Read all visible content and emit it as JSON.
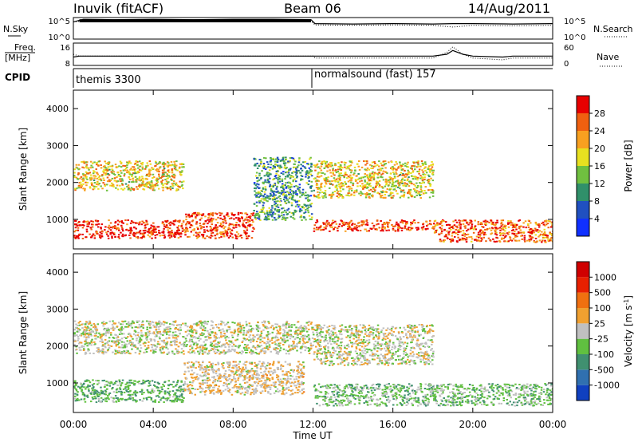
{
  "header": {
    "station": "Inuvik (fitACF)",
    "beam": "Beam 06",
    "date": "14/Aug/2011"
  },
  "noise_panel": {
    "left_label": "N.Sky",
    "left_ticks": [
      "10^5",
      "10^0"
    ],
    "right_ticks": [
      "10^5",
      "10^0"
    ],
    "right_label": "N.Search"
  },
  "freq_panel": {
    "left_label_1": "Freq.",
    "left_label_2": "[MHz]",
    "left_ticks": [
      "16",
      "8"
    ],
    "right_ticks": [
      "60",
      "0"
    ],
    "right_label": "Nave",
    "cpid_label": "CPID"
  },
  "modes": [
    {
      "name": "themis 3300",
      "start_hour": 0,
      "end_hour": 12
    },
    {
      "name": "normalsound (fast) 157",
      "start_hour": 12,
      "end_hour": 24
    }
  ],
  "time_axis": {
    "xlabel": "Time UT",
    "ticks": [
      "00:00",
      "04:00",
      "08:00",
      "12:00",
      "16:00",
      "20:00",
      "00:00"
    ]
  },
  "range_axis": {
    "ylabel": "Slant Range [km]",
    "ticks": [
      "1000",
      "2000",
      "3000",
      "4000"
    ]
  },
  "power_colorbar": {
    "label": "Power [dB]",
    "ticks": [
      "4",
      "8",
      "12",
      "16",
      "20",
      "24",
      "28"
    ],
    "colors": [
      "#1030ff",
      "#2050c0",
      "#30906a",
      "#70c040",
      "#e8e020",
      "#f8a020",
      "#f06010",
      "#e80000"
    ]
  },
  "velocity_colorbar": {
    "label_prefix": "Velocity [m s",
    "label_exp": "-1",
    "label_suffix": "]",
    "ticks": [
      "1000",
      "500",
      "100",
      "25",
      "-25",
      "-100",
      "-500",
      "-1000"
    ],
    "colors": [
      "#1040c0",
      "#3070b0",
      "#409070",
      "#60c040",
      "#c0c0c0",
      "#f0a030",
      "#f07010",
      "#e82000",
      "#d00000"
    ]
  },
  "chart_data": [
    {
      "type": "line",
      "panel": "noise",
      "x": [
        0,
        0.5,
        2,
        4,
        6,
        8,
        10,
        11.9,
        12.1,
        14,
        16,
        18,
        19,
        20,
        22,
        24
      ],
      "series": [
        {
          "name": "N.Sky",
          "values": [
            4,
            4.6,
            4.5,
            4.6,
            4.5,
            4.6,
            4.6,
            4.5,
            3.6,
            3.5,
            3.6,
            3.5,
            3.6,
            3.6,
            3.5,
            3.6
          ]
        },
        {
          "name": "N.Search",
          "values": [
            4,
            4.2,
            4.1,
            4.2,
            4.1,
            4.2,
            4.1,
            4.2,
            3.3,
            3.2,
            3.3,
            3.2,
            2.8,
            3.2,
            3.1,
            3.2
          ]
        }
      ],
      "ylim": [
        0,
        5
      ]
    },
    {
      "type": "line",
      "panel": "frequency",
      "x": [
        0,
        0.3,
        12,
        12.1,
        18,
        18.7,
        19,
        19.5,
        20,
        21.5,
        22,
        24
      ],
      "series": [
        {
          "name": "Freq.",
          "values": [
            10.5,
            11,
            11,
            11,
            11,
            12,
            14,
            12,
            11,
            10.5,
            11,
            11
          ]
        },
        {
          "name": "Nave",
          "values": [
            30,
            25,
            25,
            20,
            20,
            35,
            50,
            30,
            20,
            15,
            20,
            20
          ]
        }
      ]
    },
    {
      "type": "heatmap",
      "panel": "power",
      "xlim": [
        0,
        24
      ],
      "ylim": [
        200,
        4500
      ],
      "zlim": [
        0,
        30
      ],
      "layers": [
        {
          "hours": [
            0,
            5.5
          ],
          "range_km": [
            500,
            1000
          ],
          "value": 28
        },
        {
          "hours": [
            0,
            5.5
          ],
          "range_km": [
            1800,
            2600
          ],
          "value": 18
        },
        {
          "hours": [
            5.5,
            9
          ],
          "range_km": [
            500,
            1200
          ],
          "value": 26
        },
        {
          "hours": [
            9,
            11.9
          ],
          "range_km": [
            1000,
            2700
          ],
          "value": 10
        },
        {
          "hours": [
            12,
            18
          ],
          "range_km": [
            700,
            1000
          ],
          "value": 26
        },
        {
          "hours": [
            12,
            18
          ],
          "range_km": [
            1600,
            2600
          ],
          "value": 18
        },
        {
          "hours": [
            18,
            24
          ],
          "range_km": [
            400,
            1000
          ],
          "value": 24
        }
      ]
    },
    {
      "type": "heatmap",
      "panel": "velocity",
      "xlim": [
        0,
        24
      ],
      "ylim": [
        200,
        4500
      ],
      "zlim": [
        -1000,
        1000
      ],
      "layers": [
        {
          "hours": [
            0,
            12
          ],
          "range_km": [
            1800,
            2700
          ],
          "value": 0
        },
        {
          "hours": [
            0,
            5.5
          ],
          "range_km": [
            500,
            1100
          ],
          "value": -300
        },
        {
          "hours": [
            5.5,
            11.5
          ],
          "range_km": [
            700,
            1600
          ],
          "value": 100
        },
        {
          "hours": [
            12,
            18
          ],
          "range_km": [
            1500,
            2600
          ],
          "value": 0
        },
        {
          "hours": [
            12,
            24
          ],
          "range_km": [
            400,
            1000
          ],
          "value": -200
        }
      ]
    }
  ]
}
